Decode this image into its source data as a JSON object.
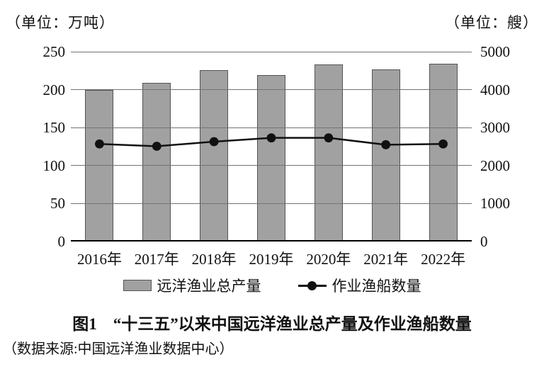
{
  "page": {
    "caption": "图1　“十三五”以来中国远洋渔业总产量及作业渔船数量",
    "source_note": "（数据来源:中国远洋渔业数据中心）"
  },
  "chart_data": {
    "type": "bar",
    "subtype": "bar-line-combo",
    "categories": [
      "2016年",
      "2017年",
      "2018年",
      "2019年",
      "2020年",
      "2021年",
      "2022年"
    ],
    "series": [
      {
        "name": "远洋渔业总产量",
        "type": "bar",
        "axis": "left",
        "values": [
          200,
          209,
          226,
          219,
          233,
          227,
          234
        ]
      },
      {
        "name": "作业渔船数量",
        "type": "line",
        "axis": "right",
        "values": [
          2570,
          2510,
          2630,
          2730,
          2730,
          2550,
          2570
        ]
      }
    ],
    "left_axis": {
      "unit": "（单位：万吨）",
      "min": 0,
      "max": 250,
      "ticks": [
        0,
        50,
        100,
        150,
        200,
        250
      ]
    },
    "right_axis": {
      "unit": "（单位：艘）",
      "min": 0,
      "max": 5000,
      "ticks": [
        0,
        1000,
        2000,
        3000,
        4000,
        5000
      ]
    },
    "grid": true,
    "legend_position": "bottom",
    "title": "图1　“十三五”以来中国远洋渔业总产量及作业渔船数量"
  },
  "colors": {
    "bar_fill": "#a1a1a1",
    "bar_border": "#545454",
    "gridline": "#737373",
    "axis_line": "#000000",
    "line_series": "#111111",
    "text": "#111111"
  }
}
